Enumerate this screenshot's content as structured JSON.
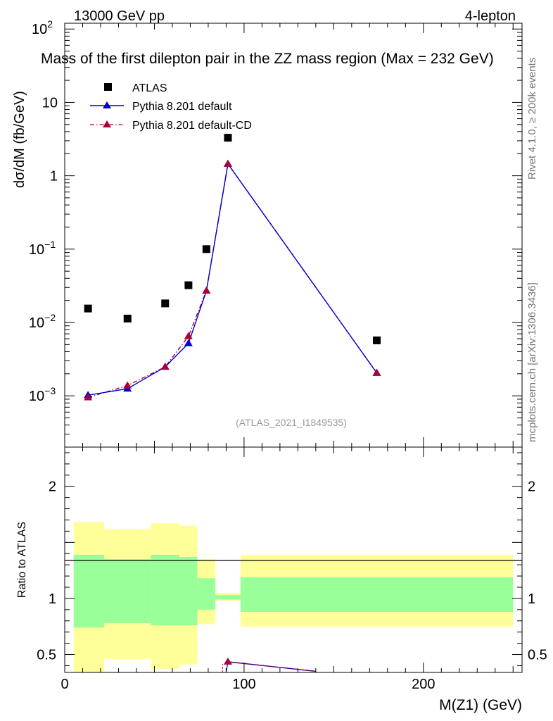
{
  "header": {
    "left": "13000 GeV pp",
    "right": "4-lepton"
  },
  "side_labels": {
    "rivet": "Rivet 4.1.0, ≥ 200k events",
    "mcplots": "mcplots.cern.ch [arXiv:1306.3436]"
  },
  "colors": {
    "atlas": "#000000",
    "pythia_default": "#0000cc",
    "pythia_cd": "#aa0033",
    "band_inner": "#99ff99",
    "band_outer": "#ffff99",
    "watermark": "#999999"
  },
  "chart_data": [
    {
      "type": "scatter",
      "title": "Mass of the first dilepton pair in the ZZ mass region (Max = 232 GeV)",
      "ylabel": "dσ/dM (fb/GeV)",
      "xlabel": "",
      "xlim": [
        0,
        255
      ],
      "ylim": [
        0.0002,
        120
      ],
      "yscale": "log",
      "y_ticks": [
        {
          "value": 100,
          "label": "10",
          "exp": "2"
        },
        {
          "value": 10,
          "label": "10",
          "exp": ""
        },
        {
          "value": 1,
          "label": "1",
          "exp": ""
        },
        {
          "value": 0.1,
          "label": "10",
          "exp": "−1"
        },
        {
          "value": 0.01,
          "label": "10",
          "exp": "−2"
        },
        {
          "value": 0.001,
          "label": "10",
          "exp": "−3"
        }
      ],
      "watermark": "(ATLAS_2021_I1849535)",
      "legend_position": "top-left",
      "series": [
        {
          "name": "ATLAS",
          "style": "markers",
          "x": [
            13,
            35,
            56,
            69,
            79,
            91,
            174
          ],
          "y": [
            0.0155,
            0.0113,
            0.0182,
            0.0322,
            0.1,
            3.3,
            0.0057
          ]
        },
        {
          "name": "Pythia 8.201 default",
          "style": "line",
          "x": [
            13,
            35,
            56,
            69,
            79,
            91,
            174
          ],
          "y": [
            0.00102,
            0.00125,
            0.00248,
            0.0052,
            0.027,
            1.45,
            0.00205
          ]
        },
        {
          "name": "Pythia 8.201 default-CD",
          "style": "dashdot",
          "x": [
            13,
            35,
            56,
            69,
            79,
            91,
            174
          ],
          "y": [
            0.00095,
            0.00138,
            0.00248,
            0.0065,
            0.027,
            1.45,
            0.00205
          ]
        }
      ]
    },
    {
      "type": "bar",
      "title": "",
      "ylabel": "Ratio to ATLAS",
      "xlabel": "M(Z1) (GeV)",
      "xlim": [
        0,
        255
      ],
      "ylim": [
        0.34,
        2.35
      ],
      "x_ticks": [
        {
          "value": 0,
          "label": "0"
        },
        {
          "value": 100,
          "label": "100"
        },
        {
          "value": 200,
          "label": "200"
        }
      ],
      "y_ticks": [
        {
          "value": 2,
          "label": "2"
        },
        {
          "value": 1,
          "label": "1"
        },
        {
          "value": 0.5,
          "label": "0.5"
        }
      ],
      "bands": [
        {
          "x0": 5,
          "x1": 22,
          "inner": [
            0.74,
            1.39
          ],
          "outer": [
            0.0,
            1.68
          ]
        },
        {
          "x0": 22,
          "x1": 48,
          "inner": [
            0.78,
            1.35
          ],
          "outer": [
            0.46,
            1.62
          ]
        },
        {
          "x0": 48,
          "x1": 64,
          "inner": [
            0.76,
            1.39
          ],
          "outer": [
            0.37,
            1.67
          ]
        },
        {
          "x0": 64,
          "x1": 74,
          "inner": [
            0.76,
            1.37
          ],
          "outer": [
            0.41,
            1.65
          ]
        },
        {
          "x0": 74,
          "x1": 84,
          "inner": [
            0.9,
            1.18
          ],
          "outer": [
            0.77,
            1.35
          ]
        },
        {
          "x0": 84,
          "x1": 98,
          "inner": [
            0.99,
            1.03
          ],
          "outer": [
            0.98,
            1.05
          ]
        },
        {
          "x0": 98,
          "x1": 250,
          "inner": [
            0.88,
            1.19
          ],
          "outer": [
            0.75,
            1.39
          ]
        }
      ],
      "series": [
        {
          "name": "Pythia 8.201 default",
          "x": [
            91,
            140
          ],
          "y": [
            0.435,
            0.35
          ]
        },
        {
          "name": "Pythia 8.201 default-CD",
          "x": [
            91,
            140
          ],
          "y": [
            0.435,
            0.35
          ]
        }
      ]
    }
  ]
}
